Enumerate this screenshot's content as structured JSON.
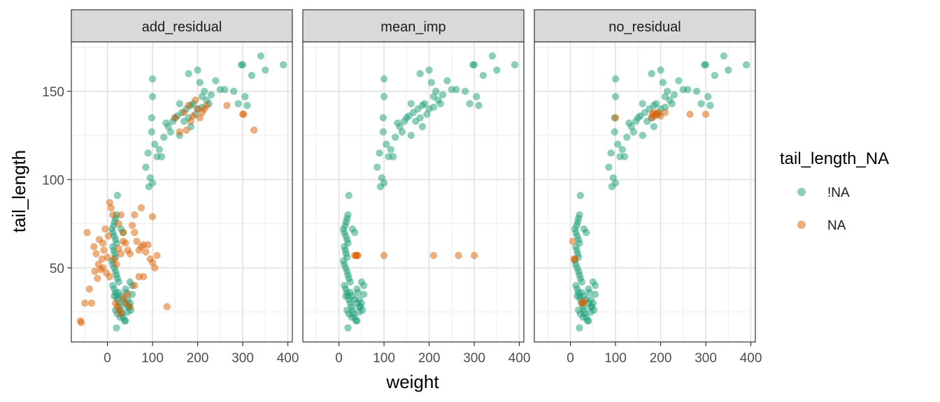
{
  "chart_data": {
    "type": "scatter",
    "facets": [
      "add_residual",
      "mean_imp",
      "no_residual"
    ],
    "xlabel": "weight",
    "ylabel": "tail_length",
    "xlim": [
      -80,
      410
    ],
    "ylim": [
      8,
      178
    ],
    "x_ticks": [
      0,
      100,
      200,
      300,
      400
    ],
    "y_ticks": [
      50,
      100,
      150
    ],
    "grid": true,
    "legend": {
      "title": "tail_length_NA",
      "position": "right",
      "entries": [
        {
          "label": "!NA",
          "color": "#1b9e77"
        },
        {
          "label": "NA",
          "color": "#d95f02"
        }
      ]
    },
    "series": [
      {
        "name": "!NA",
        "color": "#1b9e77",
        "points": [
          [
            10,
            72
          ],
          [
            12,
            70
          ],
          [
            15,
            68
          ],
          [
            18,
            66
          ],
          [
            20,
            64
          ],
          [
            12,
            62
          ],
          [
            14,
            60
          ],
          [
            16,
            58
          ],
          [
            18,
            56
          ],
          [
            10,
            54
          ],
          [
            12,
            52
          ],
          [
            15,
            50
          ],
          [
            18,
            48
          ],
          [
            20,
            46
          ],
          [
            22,
            44
          ],
          [
            25,
            42
          ],
          [
            14,
            74
          ],
          [
            16,
            76
          ],
          [
            18,
            78
          ],
          [
            20,
            80
          ],
          [
            22,
            91
          ],
          [
            30,
            72
          ],
          [
            35,
            70
          ],
          [
            12,
            40
          ],
          [
            15,
            38
          ],
          [
            18,
            36
          ],
          [
            20,
            34
          ],
          [
            22,
            32
          ],
          [
            25,
            30
          ],
          [
            28,
            28
          ],
          [
            30,
            26
          ],
          [
            32,
            24
          ],
          [
            35,
            22
          ],
          [
            38,
            20
          ],
          [
            20,
            16
          ],
          [
            40,
            20
          ],
          [
            45,
            25
          ],
          [
            50,
            30
          ],
          [
            55,
            35
          ],
          [
            45,
            32
          ],
          [
            48,
            28
          ],
          [
            52,
            26
          ],
          [
            40,
            38
          ],
          [
            42,
            36
          ],
          [
            15,
            34
          ],
          [
            25,
            36
          ],
          [
            30,
            34
          ],
          [
            35,
            32
          ],
          [
            40,
            30
          ],
          [
            45,
            28
          ],
          [
            50,
            42
          ],
          [
            55,
            40
          ],
          [
            18,
            26
          ],
          [
            22,
            24
          ],
          [
            28,
            22
          ],
          [
            92,
            96
          ],
          [
            95,
            101
          ],
          [
            100,
            98
          ],
          [
            85,
            107
          ],
          [
            90,
            115
          ],
          [
            105,
            120
          ],
          [
            110,
            113
          ],
          [
            120,
            113
          ],
          [
            115,
            117
          ],
          [
            125,
            124
          ],
          [
            130,
            132
          ],
          [
            135,
            130
          ],
          [
            140,
            127
          ],
          [
            145,
            133
          ],
          [
            150,
            135
          ],
          [
            155,
            136
          ],
          [
            160,
            143
          ],
          [
            165,
            138
          ],
          [
            175,
            140
          ],
          [
            180,
            135
          ],
          [
            185,
            142
          ],
          [
            195,
            137
          ],
          [
            200,
            140
          ],
          [
            205,
            155
          ],
          [
            210,
            147
          ],
          [
            215,
            150
          ],
          [
            220,
            145
          ],
          [
            225,
            143
          ],
          [
            230,
            148
          ],
          [
            240,
            156
          ],
          [
            250,
            151
          ],
          [
            260,
            151
          ],
          [
            280,
            150
          ],
          [
            290,
            143
          ],
          [
            297,
            165
          ],
          [
            300,
            165
          ],
          [
            305,
            147
          ],
          [
            310,
            142
          ],
          [
            320,
            159
          ],
          [
            340,
            170
          ],
          [
            350,
            162
          ],
          [
            390,
            165
          ],
          [
            200,
            162
          ],
          [
            180,
            160
          ],
          [
            100,
            157
          ],
          [
            100,
            147
          ],
          [
            98,
            135
          ],
          [
            98,
            127
          ],
          [
            160,
            125
          ],
          [
            170,
            133
          ],
          [
            185,
            130
          ],
          [
            190,
            143
          ],
          [
            210,
            141
          ]
        ]
      },
      {
        "name": "NA",
        "color": "#d95f02",
        "panels": [
          [
            [
              -60,
              20
            ],
            [
              -58,
              19
            ],
            [
              -50,
              30
            ],
            [
              -35,
              30
            ],
            [
              -45,
              70
            ],
            [
              -30,
              62
            ],
            [
              -25,
              58
            ],
            [
              -20,
              52
            ],
            [
              -15,
              49
            ],
            [
              -28,
              48
            ],
            [
              -22,
              44
            ],
            [
              -18,
              66
            ],
            [
              -10,
              64
            ],
            [
              -5,
              72
            ],
            [
              -12,
              55
            ],
            [
              -8,
              60
            ],
            [
              0,
              56
            ],
            [
              2,
              68
            ],
            [
              5,
              87
            ],
            [
              8,
              84
            ],
            [
              12,
              80
            ],
            [
              -10,
              50
            ],
            [
              -2,
              47
            ],
            [
              5,
              45
            ],
            [
              25,
              75
            ],
            [
              30,
              80
            ],
            [
              35,
              70
            ],
            [
              40,
              64
            ],
            [
              45,
              60
            ],
            [
              50,
              58
            ],
            [
              55,
              74
            ],
            [
              60,
              70
            ],
            [
              65,
              65
            ],
            [
              70,
              60
            ],
            [
              75,
              62
            ],
            [
              80,
              63
            ],
            [
              85,
              59
            ],
            [
              60,
              80
            ],
            [
              100,
              79
            ],
            [
              75,
              84
            ],
            [
              90,
              63
            ],
            [
              95,
              55
            ],
            [
              100,
              53
            ],
            [
              80,
              45
            ],
            [
              105,
              50
            ],
            [
              110,
              57
            ],
            [
              40,
              30
            ],
            [
              45,
              35
            ],
            [
              50,
              28
            ],
            [
              60,
              40
            ],
            [
              70,
              45
            ],
            [
              18,
              30
            ],
            [
              22,
              28
            ],
            [
              26,
              26
            ],
            [
              30,
              24
            ],
            [
              35,
              33
            ],
            [
              132,
              28
            ],
            [
              -40,
              38
            ],
            [
              25,
              61
            ],
            [
              30,
              58
            ],
            [
              35,
              65
            ],
            [
              15,
              55
            ],
            [
              20,
              52
            ],
            [
              160,
              127
            ],
            [
              170,
              138
            ],
            [
              180,
              142
            ],
            [
              190,
              136
            ],
            [
              200,
              140
            ],
            [
              205,
              135
            ],
            [
              210,
              138
            ],
            [
              215,
              140
            ],
            [
              150,
              135
            ],
            [
              175,
              128
            ],
            [
              185,
              133
            ],
            [
              195,
              145
            ],
            [
              220,
              142
            ],
            [
              265,
              142
            ],
            [
              300,
              137
            ],
            [
              302,
              137
            ],
            [
              325,
              128
            ]
          ],
          [
            [
              35,
              57
            ],
            [
              38,
              57
            ],
            [
              40,
              57
            ],
            [
              42,
              57
            ],
            [
              100,
              57
            ],
            [
              210,
              57
            ],
            [
              265,
              57
            ],
            [
              300,
              57
            ]
          ],
          [
            [
              5,
              65
            ],
            [
              8,
              55
            ],
            [
              10,
              55
            ],
            [
              25,
              30
            ],
            [
              28,
              30
            ],
            [
              30,
              31
            ],
            [
              180,
              135
            ],
            [
              182,
              137
            ],
            [
              185,
              138
            ],
            [
              188,
              136
            ],
            [
              190,
              137
            ],
            [
              195,
              138
            ],
            [
              200,
              136
            ],
            [
              210,
              138
            ],
            [
              265,
              137
            ],
            [
              300,
              137
            ],
            [
              100,
              135
            ]
          ]
        ]
      }
    ]
  }
}
